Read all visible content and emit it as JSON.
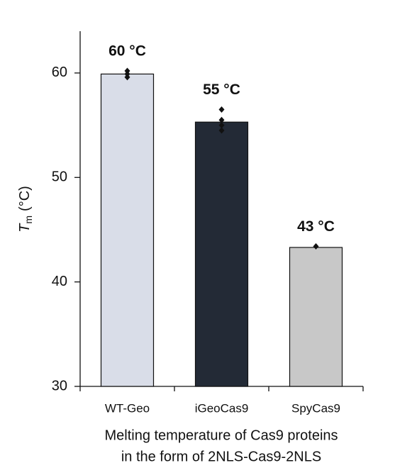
{
  "chart_data": {
    "type": "bar",
    "categories": [
      "WT-Geo",
      "iGeoCas9",
      "SpyCas9"
    ],
    "values": [
      59.9,
      55.3,
      43.3
    ],
    "value_labels": [
      "60 °C",
      "55 °C",
      "43 °C"
    ],
    "colors": [
      "#d9dde8",
      "#232a36",
      "#c8c8c8"
    ],
    "replicates": [
      [
        60.2,
        59.9,
        59.6
      ],
      [
        56.5,
        55.5,
        55.0,
        54.5
      ],
      [
        43.4
      ]
    ],
    "ylim": [
      30,
      64
    ],
    "yticks": [
      30,
      40,
      50,
      60
    ],
    "y_label": {
      "symbol": "T",
      "subscript": "m",
      "unit": "(°C)"
    },
    "x_label": [
      "Melting temperature of Cas9 proteins",
      "in the form of 2NLS-Cas9-2NLS"
    ]
  }
}
